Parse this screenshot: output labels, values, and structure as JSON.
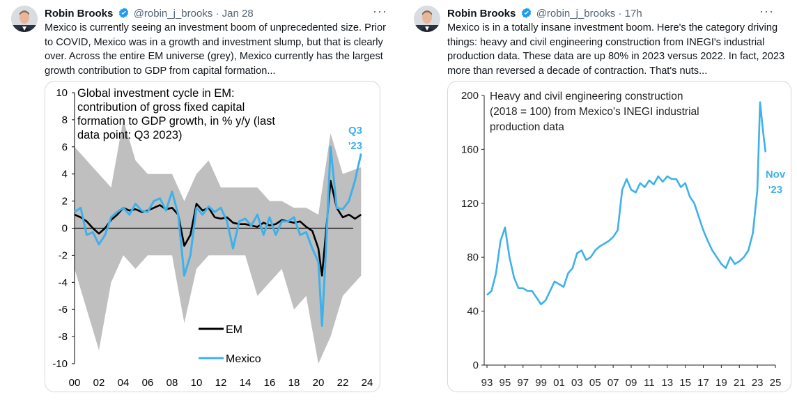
{
  "tweets": [
    {
      "name": "Robin Brooks",
      "handle": "@robin_j_brooks",
      "separator": "·",
      "time": "Jan 28",
      "more": "···",
      "text": "Mexico is currently seeing an investment boom of unprecedented size. Prior to COVID, Mexico was in a growth and investment slump, but that is clearly over. Across the entire EM universe (grey), Mexico currently has the largest growth contribution to GDP from capital formation...",
      "chart_data": {
        "type": "line",
        "title": "Global investment cycle in EM: contribution of gross fixed capital formation to GDP growth, in % y/y (last data point: Q3 2023)",
        "x_tick_labels": [
          "00",
          "02",
          "04",
          "06",
          "08",
          "10",
          "12",
          "14",
          "16",
          "18",
          "20",
          "22",
          "24"
        ],
        "y_tick_labels": [
          "10",
          "8",
          "6",
          "4",
          "2",
          "0",
          "-2",
          "-4",
          "-6",
          "-8",
          "-10"
        ],
        "ylim": [
          -10,
          10
        ],
        "xlim": [
          2000,
          2024
        ],
        "annotation": "Q3 '23",
        "band": {
          "name": "",
          "x": [
            2000,
            2001,
            2002,
            2003,
            2004,
            2005,
            2006,
            2007,
            2008,
            2009,
            2010,
            2011,
            2012,
            2013,
            2014,
            2015,
            2016,
            2017,
            2018,
            2019,
            2020,
            2021,
            2022,
            2023.5
          ],
          "upper": [
            6,
            5,
            4,
            3,
            8,
            5,
            4,
            4,
            4,
            2,
            4,
            5,
            3,
            3,
            3,
            3,
            2,
            2,
            1.5,
            1.5,
            1,
            7,
            4,
            4.5
          ],
          "lower": [
            -3,
            -6,
            -9,
            -4,
            -2,
            -3,
            -2,
            -2,
            -2,
            -7,
            -3,
            -2,
            -2,
            -2,
            -2,
            -5,
            -4,
            -3,
            -6,
            -5,
            -10,
            -8,
            -5,
            -3.5
          ]
        },
        "series": [
          {
            "name": "EM",
            "x": [
              2000,
              2000.5,
              2001,
              2001.5,
              2002,
              2002.5,
              2003,
              2003.5,
              2004,
              2004.5,
              2005,
              2005.5,
              2006,
              2006.5,
              2007,
              2007.5,
              2008,
              2008.5,
              2009,
              2009.5,
              2010,
              2010.5,
              2011,
              2011.5,
              2012,
              2012.5,
              2013,
              2013.5,
              2014,
              2014.5,
              2015,
              2015.5,
              2016,
              2016.5,
              2017,
              2017.5,
              2018,
              2018.5,
              2019,
              2019.5,
              2020,
              2020.3,
              2020.6,
              2021,
              2021.5,
              2022,
              2022.5,
              2023,
              2023.5
            ],
            "values": [
              1,
              0.8,
              0.5,
              0,
              -0.4,
              0,
              0.6,
              1,
              1.5,
              1.3,
              1.4,
              1.2,
              1.3,
              1.5,
              1.7,
              1.4,
              1.5,
              1,
              -1.3,
              -0.5,
              1.8,
              1.3,
              1.5,
              0.8,
              0.7,
              0.8,
              0.4,
              0.3,
              0.3,
              0.2,
              0.1,
              0.4,
              0.2,
              0.3,
              0.6,
              0.5,
              0.4,
              0.5,
              0.1,
              -0.2,
              -1.5,
              -3.5,
              -0.5,
              3.5,
              1.5,
              0.8,
              1,
              0.7,
              1
            ]
          },
          {
            "name": "Mexico",
            "x": [
              2000,
              2000.5,
              2001,
              2001.5,
              2002,
              2002.5,
              2003,
              2003.5,
              2004,
              2004.5,
              2005,
              2005.5,
              2006,
              2006.5,
              2007,
              2007.5,
              2008,
              2008.5,
              2009,
              2009.5,
              2010,
              2010.5,
              2011,
              2011.5,
              2012,
              2012.5,
              2013,
              2013.5,
              2014,
              2014.5,
              2015,
              2015.5,
              2016,
              2016.5,
              2017,
              2017.5,
              2018,
              2018.5,
              2019,
              2019.5,
              2020,
              2020.3,
              2020.6,
              2021,
              2021.5,
              2022,
              2022.5,
              2023,
              2023.5
            ],
            "values": [
              1.2,
              1.5,
              -0.5,
              -0.3,
              -1.2,
              -0.5,
              0.8,
              1.2,
              1.5,
              1,
              1.8,
              1.3,
              1.2,
              2,
              2.2,
              1.3,
              2.7,
              1,
              -3.5,
              -2,
              1.5,
              1,
              1.6,
              1.2,
              1.5,
              0.5,
              -1.5,
              0.5,
              0.7,
              0.2,
              1,
              -0.5,
              0.8,
              -0.5,
              0.5,
              0.5,
              0.8,
              -0.5,
              -0.3,
              -1.5,
              -2.5,
              -7.2,
              -2,
              6,
              1.5,
              1.4,
              2,
              3.5,
              5.5
            ]
          }
        ],
        "colors": {
          "EM": "#000000",
          "Mexico": "#3eb1ea",
          "band": "#bfbfbf",
          "annotation": "#3eb1ea"
        }
      }
    },
    {
      "name": "Robin Brooks",
      "handle": "@robin_j_brooks",
      "separator": "·",
      "time": "17h",
      "more": "···",
      "text": "Mexico is in a totally insane investment boom. Here's the category driving things: heavy and civil engineering construction from INEGI's industrial production data. These data are up 80% in 2023 versus 2022. In fact, 2023 more than reversed a decade of contraction. That's nuts...",
      "chart_data": {
        "type": "line",
        "title": "Heavy and civil engineering construction (2018 = 100) from Mexico's INEGI industrial production data",
        "x_tick_labels": [
          "93",
          "95",
          "97",
          "99",
          "01",
          "03",
          "05",
          "07",
          "09",
          "11",
          "13",
          "15",
          "17",
          "19",
          "21",
          "23",
          "25"
        ],
        "y_tick_labels": [
          "200",
          "160",
          "120",
          "80",
          "40",
          "0"
        ],
        "ylim": [
          0,
          200
        ],
        "xlim": [
          1993,
          2025
        ],
        "annotation": "Nov '23",
        "series": [
          {
            "name": "",
            "x": [
              1993,
              1993.5,
              1994,
              1994.5,
              1995,
              1995.5,
              1996,
              1996.5,
              1997,
              1997.5,
              1998,
              1998.5,
              1999,
              1999.5,
              2000,
              2000.5,
              2001,
              2001.5,
              2002,
              2002.5,
              2003,
              2003.5,
              2004,
              2004.5,
              2005,
              2005.5,
              2006,
              2006.5,
              2007,
              2007.5,
              2008,
              2008.5,
              2009,
              2009.5,
              2010,
              2010.5,
              2011,
              2011.5,
              2012,
              2012.5,
              2013,
              2013.5,
              2014,
              2014.5,
              2015,
              2015.5,
              2016,
              2016.5,
              2017,
              2017.5,
              2018,
              2018.5,
              2019,
              2019.5,
              2020,
              2020.5,
              2021,
              2021.5,
              2022,
              2022.5,
              2023,
              2023.3,
              2023.6,
              2023.9
            ],
            "values": [
              52,
              55,
              68,
              92,
              102,
              80,
              65,
              57,
              57,
              55,
              55,
              50,
              45,
              48,
              55,
              62,
              60,
              58,
              68,
              72,
              83,
              85,
              78,
              80,
              85,
              88,
              90,
              92,
              95,
              100,
              130,
              138,
              130,
              128,
              135,
              132,
              137,
              134,
              140,
              136,
              140,
              138,
              138,
              132,
              135,
              125,
              120,
              110,
              100,
              92,
              85,
              80,
              75,
              72,
              80,
              75,
              77,
              80,
              85,
              98,
              130,
              195,
              175,
              158
            ]
          }
        ],
        "colors": {
          "line": "#3eb1ea",
          "annotation": "#3eb1ea"
        }
      }
    }
  ]
}
